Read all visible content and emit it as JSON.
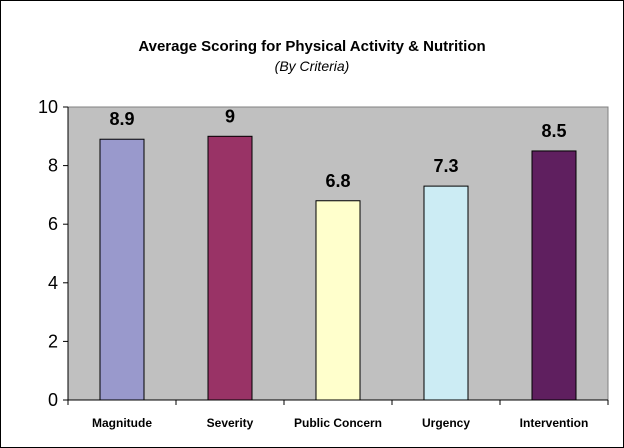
{
  "chart_data": {
    "type": "bar",
    "title": "Average Scoring for Physical Activity & Nutrition",
    "subtitle": "(By Criteria)",
    "categories": [
      "Magnitude",
      "Severity",
      "Public Concern",
      "Urgency",
      "Intervention"
    ],
    "values": [
      8.9,
      9,
      6.8,
      7.3,
      8.5
    ],
    "data_labels": [
      "8.9",
      "9",
      "6.8",
      "7.3",
      "8.5"
    ],
    "colors": [
      "#9999cc",
      "#993366",
      "#ffffcc",
      "#ccecf4",
      "#5f1f5f"
    ],
    "ylim": [
      0,
      10
    ],
    "yticks": [
      0,
      2,
      4,
      6,
      8,
      10
    ],
    "xlabel": "",
    "ylabel": "",
    "plot_background": "#c0c0c0",
    "grid": false,
    "legend": "none"
  }
}
